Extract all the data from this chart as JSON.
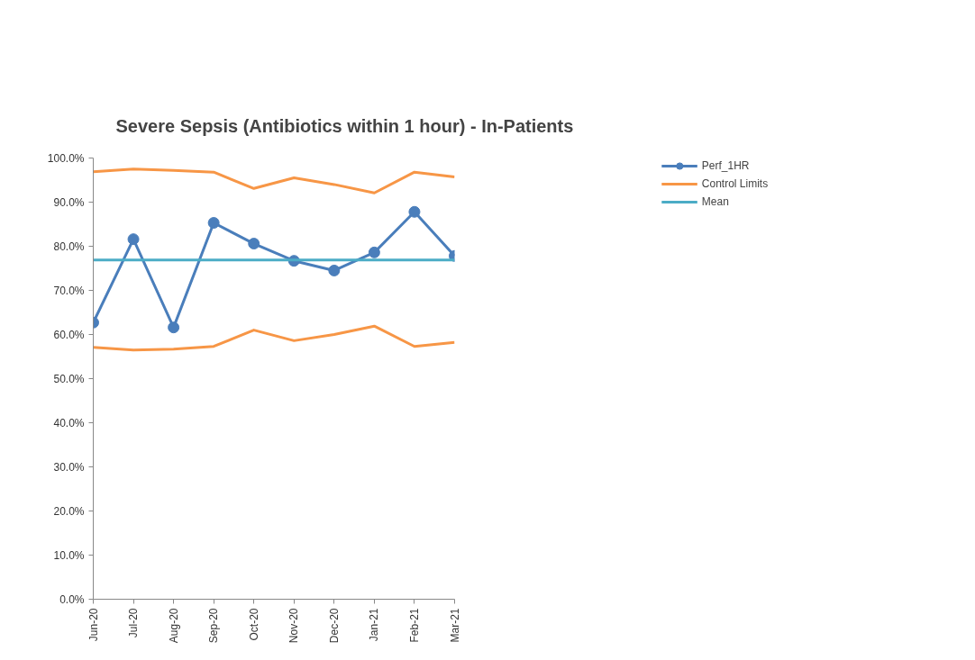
{
  "chart_data": {
    "type": "line",
    "title": "Severe Sepsis (Antibiotics within 1 hour) - In-Patients",
    "categories": [
      "Jun-20",
      "Jul-20",
      "Aug-20",
      "Sep-20",
      "Oct-20",
      "Nov-20",
      "Dec-20",
      "Jan-21",
      "Feb-21",
      "Mar-21"
    ],
    "series": [
      {
        "name": "Perf_1HR",
        "color": "#4a7ebb",
        "marker": "circle",
        "values": [
          62.7,
          81.6,
          61.6,
          85.3,
          80.6,
          76.7,
          74.5,
          78.6,
          87.8,
          77.8
        ]
      },
      {
        "name": "Control Limits",
        "color": "#f79646",
        "marker": "none",
        "values": [
          96.9,
          97.5,
          97.2,
          96.8,
          93.1,
          95.5,
          94.0,
          92.1,
          96.8,
          95.7
        ]
      },
      {
        "color": "#f79646",
        "marker": "none",
        "values": [
          57.1,
          56.5,
          56.7,
          57.3,
          61.0,
          58.6,
          60.0,
          61.9,
          57.3,
          58.2
        ]
      },
      {
        "name": "Mean",
        "color": "#4bacc6",
        "marker": "none",
        "values": [
          76.9,
          76.9,
          76.9,
          76.9,
          76.9,
          76.9,
          76.9,
          76.9,
          76.9,
          76.9
        ]
      }
    ],
    "ylim": [
      0,
      100
    ],
    "yticks": [
      {
        "value": 0,
        "label": "0.0%"
      },
      {
        "value": 10,
        "label": "10.0%"
      },
      {
        "value": 20,
        "label": "20.0%"
      },
      {
        "value": 30,
        "label": "30.0%"
      },
      {
        "value": 40,
        "label": "40.0%"
      },
      {
        "value": 50,
        "label": "50.0%"
      },
      {
        "value": 60,
        "label": "60.0%"
      },
      {
        "value": 70,
        "label": "70.0%"
      },
      {
        "value": 80,
        "label": "80.0%"
      },
      {
        "value": 90,
        "label": "90.0%"
      },
      {
        "value": 100,
        "label": "100.0%"
      }
    ],
    "grid": false,
    "legend": "top right",
    "line_style": "solid"
  }
}
